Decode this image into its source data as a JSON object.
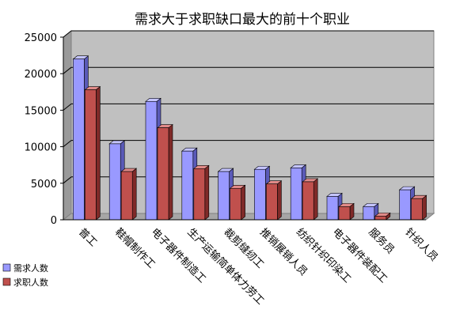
{
  "chart_data": {
    "type": "bar",
    "title": "需求大于求职缺口最大的前十个职业",
    "categories": [
      "普工",
      "鞋帽制作工",
      "电子器件制造工",
      "生产运输简单体力劳工",
      "裁剪缝纫工",
      "推销展销人员",
      "纺织针织印染工",
      "电子器件装配工",
      "服务员",
      "针织人员"
    ],
    "series": [
      {
        "name": "需求人数",
        "values": [
          22000,
          10400,
          16200,
          9400,
          6600,
          6900,
          7100,
          3200,
          1800,
          4100
        ]
      },
      {
        "name": "求职人数",
        "values": [
          17800,
          6600,
          12600,
          7000,
          4300,
          4900,
          5200,
          1800,
          500,
          2900
        ]
      }
    ],
    "ylim": [
      0,
      25000
    ],
    "yticks": [
      0,
      5000,
      10000,
      15000,
      20000,
      25000
    ],
    "grid": true,
    "legend_position": "bottom-left",
    "colors": {
      "series_front": [
        "#9999ff",
        "#c0504d"
      ],
      "series_side": [
        "#5a5ab8",
        "#7f2a28"
      ],
      "series_top": [
        "#c4c4ff",
        "#e08a88"
      ],
      "plot_back": "#c0c0c0",
      "plot_floor": "#a6a6a6",
      "plot_side": "#9a9a9a",
      "gridline": "#000000"
    }
  }
}
